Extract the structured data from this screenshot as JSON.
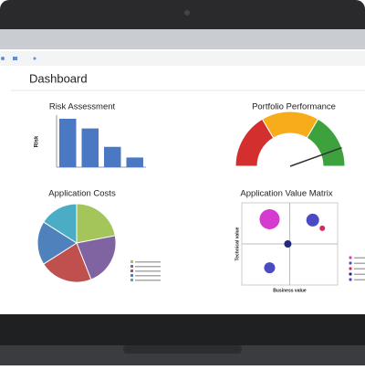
{
  "header": {
    "title": "Dashboard"
  },
  "chart_data": [
    {
      "type": "bar",
      "title": "Risk Assessment",
      "y_label": "Risk",
      "categories": [
        null,
        null,
        null,
        null
      ],
      "values": [
        100,
        80,
        42,
        20
      ],
      "color": "#4a78c2",
      "ylim": [
        0,
        100
      ]
    },
    {
      "type": "gauge",
      "title": "Portfolio Performance",
      "value": 89,
      "ylim": [
        0,
        100
      ],
      "bands": [
        33,
        67,
        100
      ],
      "band_colors": [
        "#d32f2f",
        "#f7ad19",
        "#3da23d"
      ]
    },
    {
      "type": "pie",
      "title": "Application Costs",
      "values": [
        22,
        22,
        22,
        18,
        16
      ],
      "colors": [
        "#a3c55a",
        "#8064a2",
        "#c0504d",
        "#4f81bd",
        "#4bacc6"
      ]
    },
    {
      "type": "scatter",
      "title": "Application Value Matrix",
      "x_label": "Business value",
      "y_label": "Technical value",
      "x": [
        2.9,
        7.4,
        8.4,
        4.8,
        2.9
      ],
      "y": [
        8.0,
        7.9,
        6.9,
        5.0,
        2.1
      ],
      "sizes": [
        11,
        7,
        3,
        4,
        6
      ],
      "colors": [
        "#d63ad1",
        "#4a4bc0",
        "#e0245e",
        "#1f2a7a",
        "#4a4bc0"
      ],
      "xlim": [
        0,
        10
      ],
      "ylim": [
        0,
        10
      ]
    }
  ]
}
